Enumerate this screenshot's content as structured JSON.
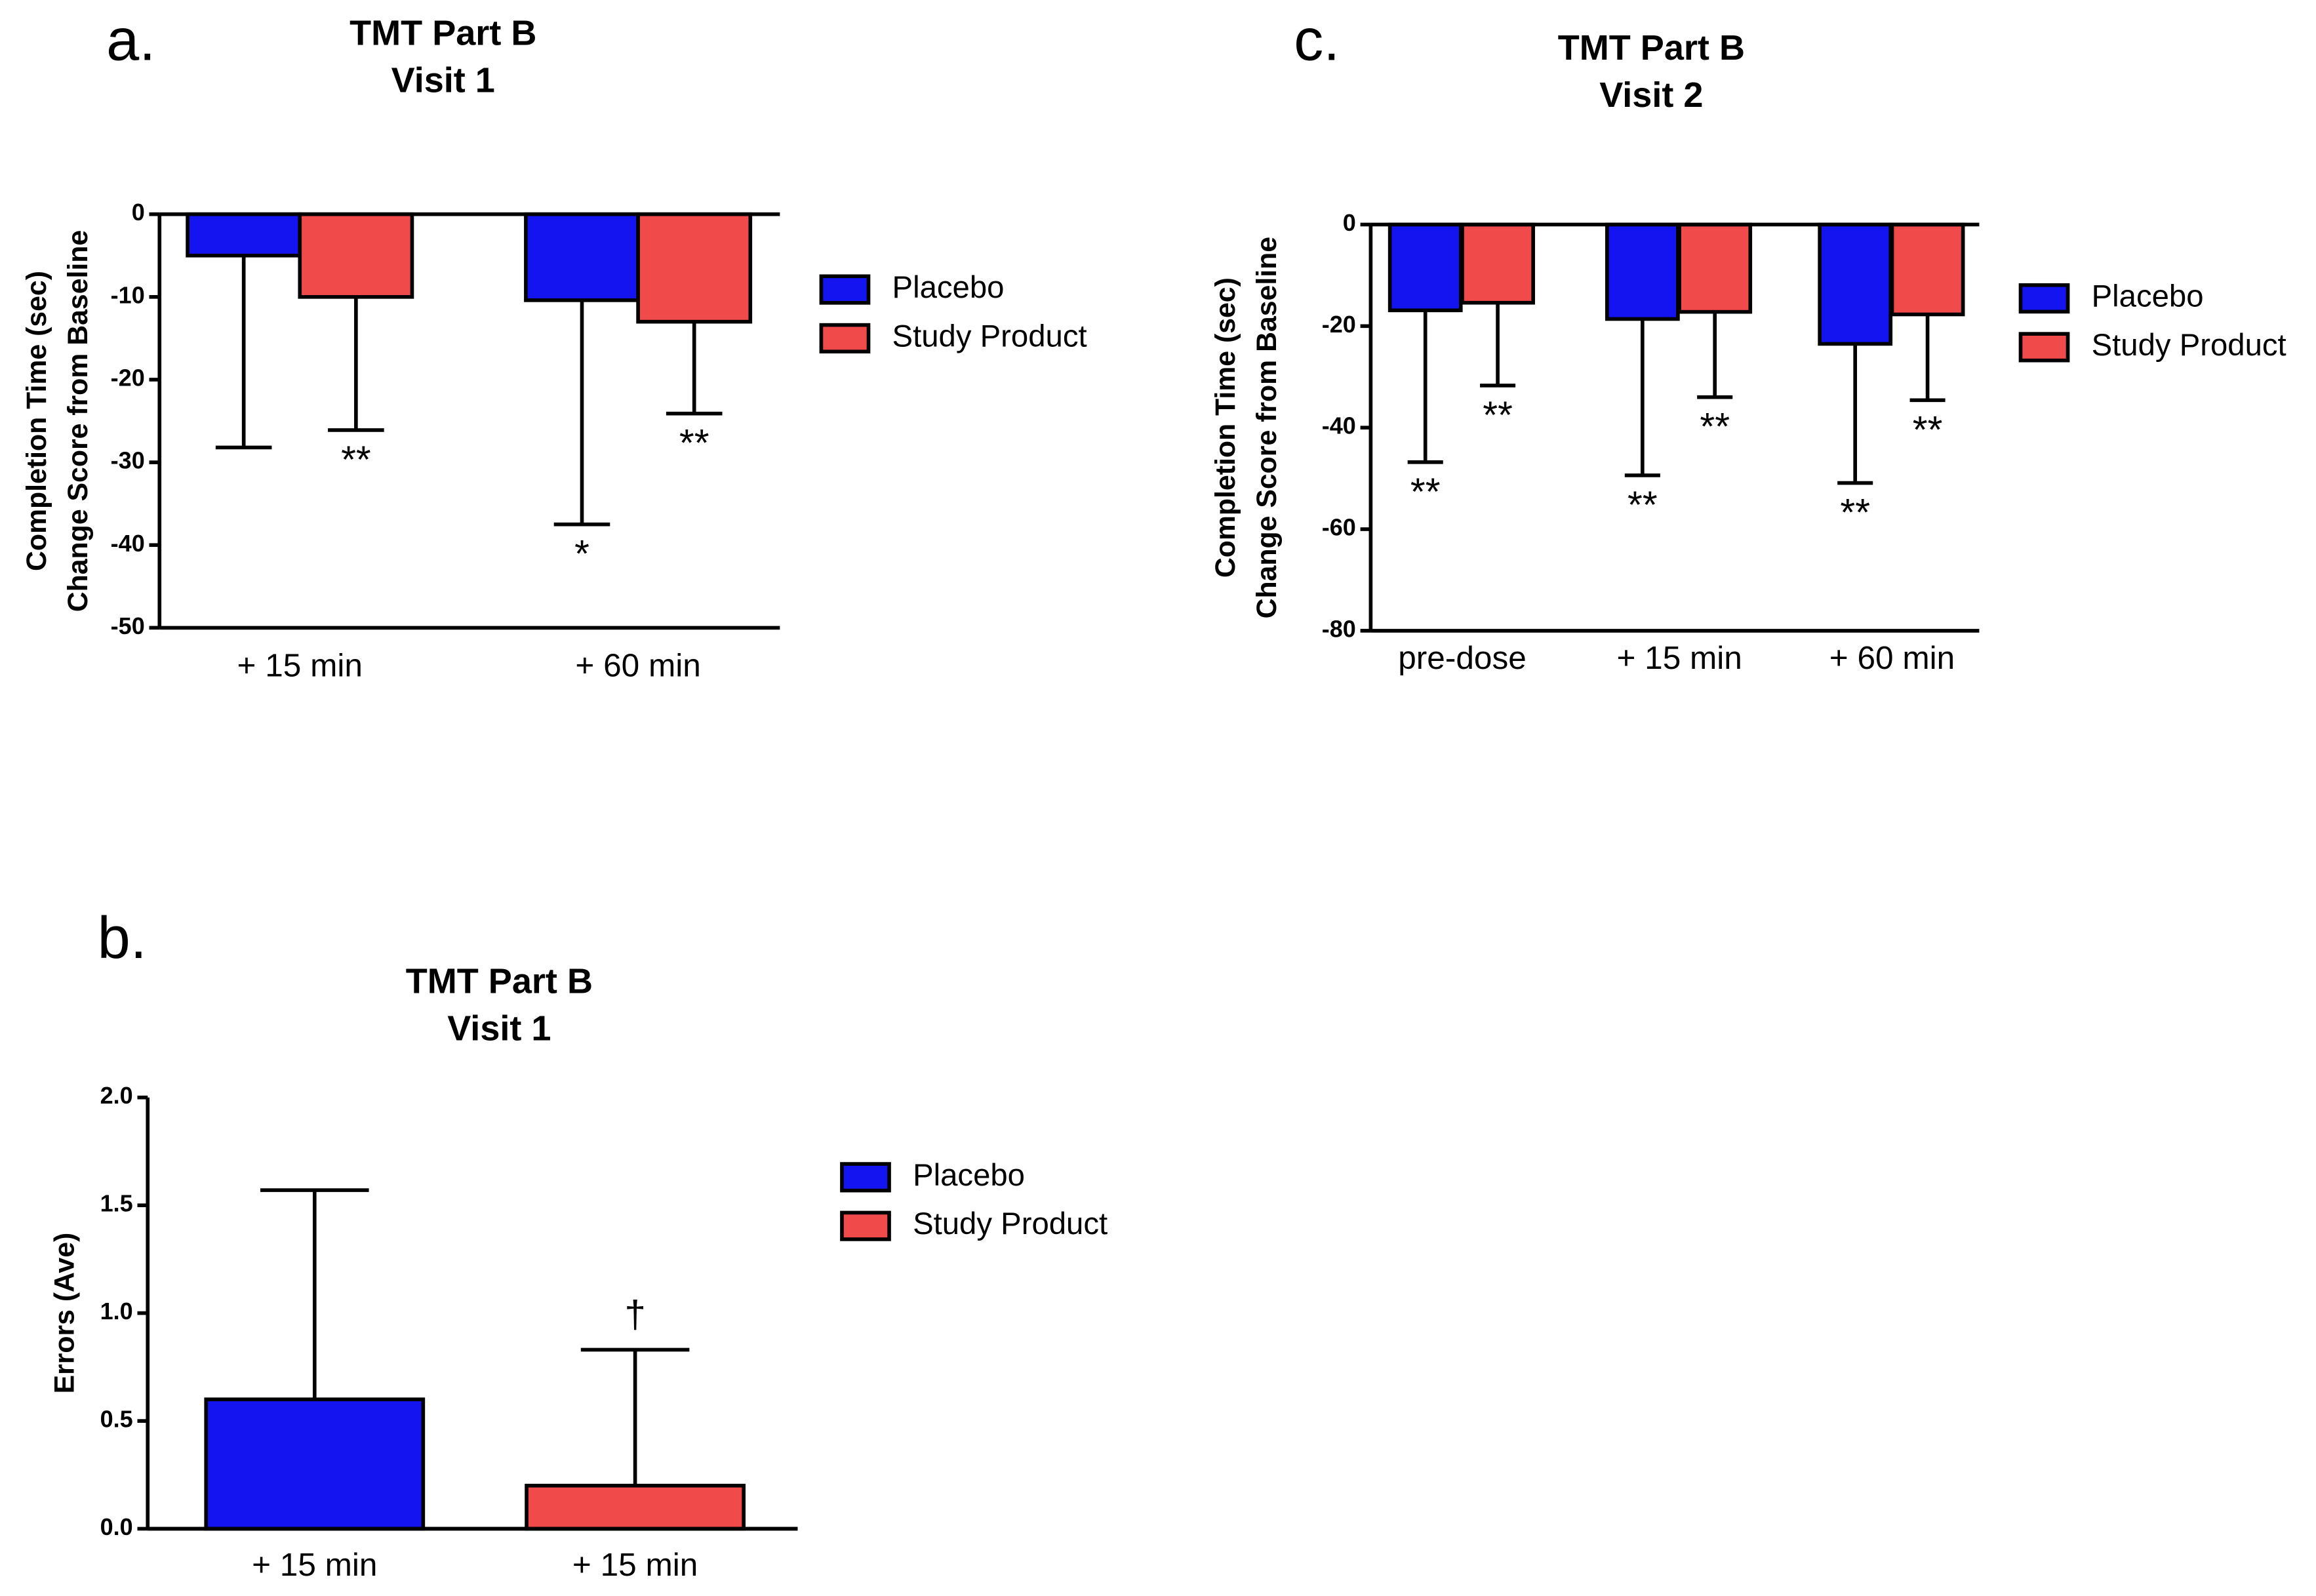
{
  "chart_data": [
    {
      "type": "bar",
      "panel": "a.",
      "title": "TMT Part B",
      "subtitle": "Visit 1",
      "ylabel": [
        "Completion Time (sec)",
        "Change Score from Baseline"
      ],
      "categories": [
        "+ 15 min",
        "+ 60 min"
      ],
      "series": [
        {
          "name": "Placebo",
          "color": "#1414f0",
          "values": [
            -5,
            -10.4
          ],
          "errors": [
            23.2,
            27.1
          ],
          "markers": [
            null,
            "*"
          ]
        },
        {
          "name": "Study Product",
          "color": "#f04a4a",
          "values": [
            -10,
            -13
          ],
          "errors": [
            16.1,
            11.1
          ],
          "markers": [
            "**",
            "**"
          ]
        }
      ],
      "ylim": [
        -50,
        0
      ],
      "yticks": [
        0,
        -10,
        -20,
        -30,
        -40,
        -50
      ]
    },
    {
      "type": "bar",
      "panel": "b.",
      "title": "TMT Part B",
      "subtitle": "Visit 1",
      "ylabel": [
        "Errors (Ave)"
      ],
      "categories": [
        "+ 15 min",
        "+ 15 min"
      ],
      "series": [
        {
          "name": "Placebo",
          "color": "#1414f0",
          "values": [
            0.6,
            null
          ],
          "errors": [
            0.97,
            null
          ],
          "markers": [
            null,
            null
          ]
        },
        {
          "name": "Study Product",
          "color": "#f04a4a",
          "values": [
            null,
            0.2
          ],
          "errors": [
            null,
            0.63
          ],
          "markers": [
            null,
            "†"
          ]
        }
      ],
      "ylim": [
        0,
        2
      ],
      "yticks": [
        {
          "value": 0,
          "label": "0.0"
        },
        {
          "value": 0.5,
          "label": "0.5"
        },
        {
          "value": 1,
          "label": "1.0"
        },
        {
          "value": 1.5,
          "label": "1.5"
        },
        {
          "value": 2,
          "label": "2.0"
        }
      ]
    },
    {
      "type": "bar",
      "panel": "c.",
      "title": "TMT Part B",
      "subtitle": "Visit 2",
      "ylabel": [
        "Completion Time (sec)",
        "Change Score from Baseline"
      ],
      "categories": [
        "pre-dose",
        "+ 15 min",
        "+ 60 min"
      ],
      "series": [
        {
          "name": "Placebo",
          "color": "#1414f0",
          "values": [
            -16.9,
            -18.6,
            -23.5
          ],
          "errors": [
            29.9,
            30.8,
            27.4
          ],
          "markers": [
            "**",
            "**",
            "**"
          ]
        },
        {
          "name": "Study Product",
          "color": "#f04a4a",
          "values": [
            -15.4,
            -17.2,
            -17.7
          ],
          "errors": [
            16.3,
            16.8,
            16.9
          ],
          "markers": [
            "**",
            "**",
            "**"
          ]
        }
      ],
      "ylim": [
        -80,
        0
      ],
      "yticks": [
        0,
        -20,
        -40,
        -60,
        -80
      ]
    }
  ]
}
